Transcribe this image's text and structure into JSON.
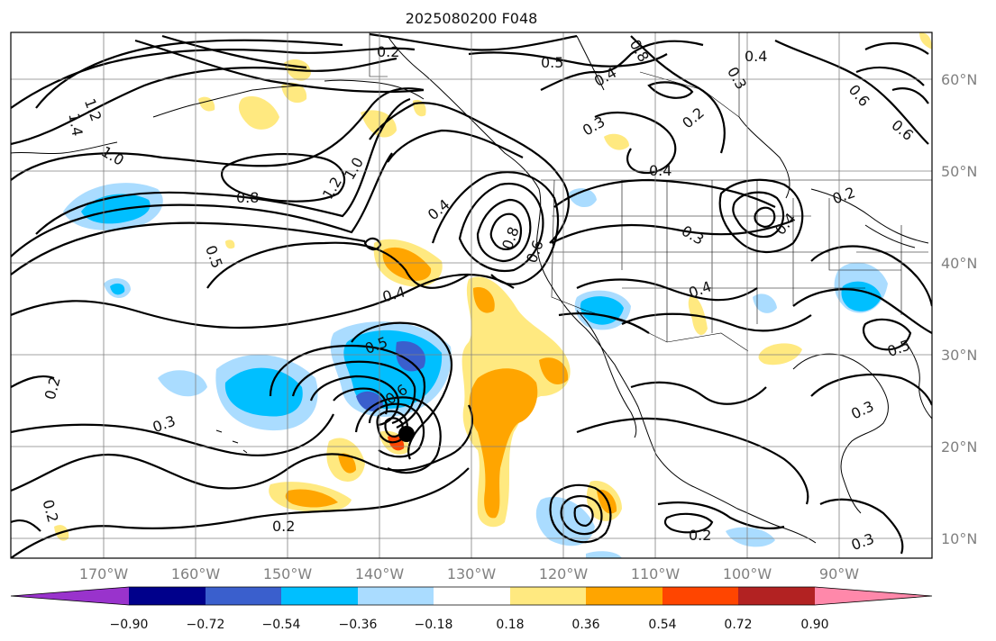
{
  "title": "2025080200 F048",
  "lon_ticks": [
    "170°W",
    "160°W",
    "150°W",
    "140°W",
    "130°W",
    "120°W",
    "110°W",
    "100°W",
    "90°W"
  ],
  "lat_ticks": [
    "60°N",
    "50°N",
    "40°N",
    "30°N",
    "20°N",
    "10°N"
  ],
  "colorbar": {
    "ticks": [
      "−0.90",
      "−0.72",
      "−0.54",
      "−0.36",
      "−0.18",
      "0.18",
      "0.36",
      "0.54",
      "0.72",
      "0.90"
    ],
    "colors": [
      "#9933cc",
      "#00008b",
      "#3a5fcd",
      "#00bfff",
      "#aadcff",
      "#ffffff",
      "#ffe980",
      "#ffa500",
      "#ff4500",
      "#b22222",
      "#ff88aa"
    ]
  },
  "contour_labels": [
    "0.2",
    "0.5",
    "0.4",
    "0.8",
    "0.3",
    "0.4",
    "0.6",
    "0.2",
    "0.3",
    "1.2",
    "1.4",
    "1.0",
    "0.8",
    "1.2",
    "1.0",
    "0.4",
    "0.8",
    "0.6",
    "0.5",
    "0.4",
    "0.2",
    "0.3",
    "0.4",
    "0.5",
    "0.6",
    "0.2",
    "0.3",
    "0.3",
    "0.2",
    "0.2",
    "0.3",
    "0.2",
    "0.5",
    "0.6",
    "0.4",
    "0.4"
  ],
  "map": {
    "lon_range": [
      -179,
      -77
    ],
    "lat_range": [
      7,
      65
    ],
    "grid_lines": true
  }
}
